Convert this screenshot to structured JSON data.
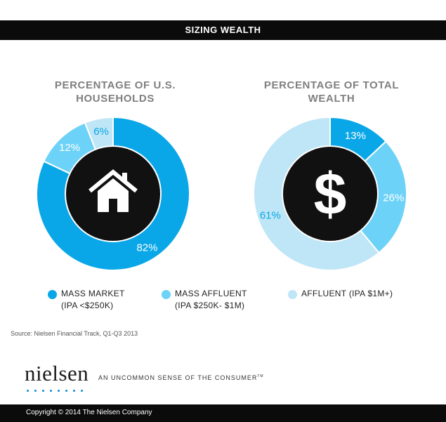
{
  "header": {
    "title": "SIZING WEALTH"
  },
  "colors": {
    "mass_market": "#0aa7e8",
    "mass_affluent": "#6cd2f7",
    "affluent": "#bfe6f6",
    "center": "#111111",
    "background": "#ffffff"
  },
  "chart_data": [
    {
      "type": "pie",
      "title": "PERCENTAGE OF U.S. HOUSEHOLDS",
      "center_icon": "house-icon",
      "categories": [
        "MASS MARKET",
        "MASS AFFLUENT",
        "AFFLUENT"
      ],
      "values": [
        82,
        12,
        6
      ],
      "labels": [
        "82%",
        "12%",
        "6%"
      ]
    },
    {
      "type": "pie",
      "title": "PERCENTAGE OF TOTAL WEALTH",
      "center_icon": "dollar-icon",
      "categories": [
        "MASS MARKET",
        "MASS AFFLUENT",
        "AFFLUENT"
      ],
      "values": [
        13,
        26,
        61
      ],
      "labels": [
        "13%",
        "26%",
        "61%"
      ]
    }
  ],
  "legend": [
    {
      "line1": "MASS MARKET",
      "line2": "(IPA <$250K)"
    },
    {
      "line1": "MASS AFFLUENT",
      "line2": "(IPA $250K- $1M)"
    },
    {
      "line1": "AFFLUENT (IPA $1M+)",
      "line2": ""
    }
  ],
  "source": "Source: Nielsen Financial Track, Q1-Q3 2013",
  "brand": {
    "logo": "nielsen",
    "tagline": "AN UNCOMMON SENSE OF THE CONSUMER",
    "tagline_mark": "TM"
  },
  "footer": {
    "copyright": "Copyright © 2014 The Nielsen Company"
  }
}
